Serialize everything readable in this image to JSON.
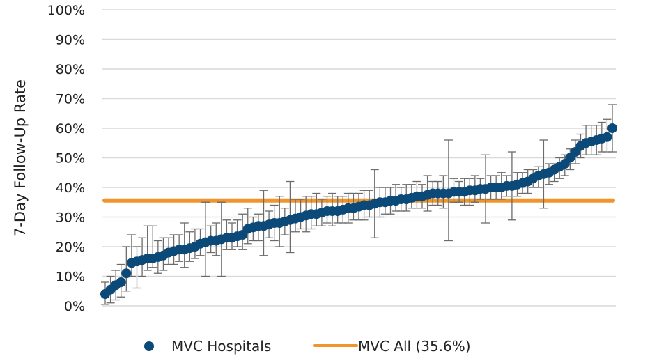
{
  "chart_data": {
    "type": "scatter",
    "title": "",
    "xlabel": "",
    "ylabel": "7-Day Follow-Up Rate",
    "ylim": [
      0,
      100
    ],
    "yticks": [
      "0%",
      "10%",
      "20%",
      "30%",
      "40%",
      "50%",
      "60%",
      "70%",
      "80%",
      "90%",
      "100%"
    ],
    "grid": true,
    "legend_position": "bottom",
    "legend": [
      {
        "name": "MVC Hospitals",
        "marker": "circle",
        "color": "#0b4a78"
      },
      {
        "name": "MVC All (35.6%)",
        "marker": "line",
        "color": "#f0952c"
      }
    ],
    "reference_line": {
      "name": "MVC All (35.6%)",
      "value": 35.6,
      "color": "#f0952c"
    },
    "series": [
      {
        "name": "MVC Hospitals",
        "color": "#0b4a78",
        "error_bar_color": "#6b6b6b",
        "values": [
          4,
          5.5,
          7,
          8,
          11,
          14.5,
          15,
          15.5,
          16,
          16,
          16.5,
          17,
          18,
          18.5,
          19,
          19,
          19.5,
          20,
          21,
          21.5,
          22,
          22,
          22.5,
          23,
          23,
          23.5,
          24,
          26,
          26.5,
          27,
          27,
          27.5,
          28,
          28,
          28.5,
          29,
          29.5,
          30,
          30.5,
          31,
          31,
          31.5,
          32,
          32,
          32,
          32.5,
          33,
          33,
          33.5,
          34,
          34,
          34.5,
          35,
          35,
          35.5,
          35.5,
          36,
          36,
          36.5,
          37,
          37,
          37.5,
          38,
          38,
          38,
          38,
          38.5,
          38.5,
          38.5,
          39,
          39,
          39.5,
          39.5,
          40,
          40,
          40,
          40.5,
          40.5,
          41,
          41.5,
          42,
          43,
          44,
          44.5,
          45,
          46,
          47,
          48,
          50,
          52,
          54,
          55,
          55.5,
          56,
          56.5,
          57,
          60
        ],
        "lower": [
          0.5,
          1,
          2,
          3,
          5,
          10,
          6,
          10,
          12,
          13,
          11,
          12,
          14,
          14,
          15,
          13,
          15,
          16,
          17,
          10,
          18,
          17,
          10,
          19,
          19,
          20,
          19,
          21,
          22,
          22,
          17,
          23,
          22,
          20,
          24,
          18,
          25,
          26,
          25,
          26,
          27,
          27,
          28,
          27,
          28,
          28,
          28,
          29,
          29,
          29,
          30,
          23,
          30,
          31,
          31,
          32,
          32,
          32,
          33,
          33,
          33,
          32,
          34,
          34,
          33,
          22,
          35,
          35,
          34,
          34,
          35,
          36,
          28,
          36,
          36,
          36,
          37,
          29,
          37,
          38,
          38,
          40,
          40,
          33,
          41,
          42,
          43,
          44,
          46,
          48,
          50,
          51,
          51,
          51,
          52,
          52,
          52
        ],
        "upper": [
          8,
          10,
          12,
          14,
          20,
          24,
          20,
          23,
          27,
          27,
          22,
          23,
          23,
          24,
          24,
          28,
          25,
          26,
          26,
          35,
          27,
          28,
          35,
          29,
          28,
          29,
          31,
          33,
          30,
          31,
          39,
          32,
          34,
          37,
          33,
          42,
          36,
          36,
          37,
          37,
          38,
          36,
          37,
          38,
          37,
          37,
          38,
          38,
          38,
          39,
          39,
          46,
          40,
          40,
          40,
          41,
          40,
          41,
          41,
          42,
          41,
          44,
          42,
          42,
          44,
          56,
          43,
          42,
          43,
          43,
          44,
          43,
          51,
          44,
          44,
          45,
          44,
          52,
          45,
          45,
          46,
          46,
          47,
          56,
          48,
          48,
          50,
          51,
          53,
          56,
          58,
          61,
          61,
          61,
          62,
          63,
          68
        ]
      }
    ]
  }
}
